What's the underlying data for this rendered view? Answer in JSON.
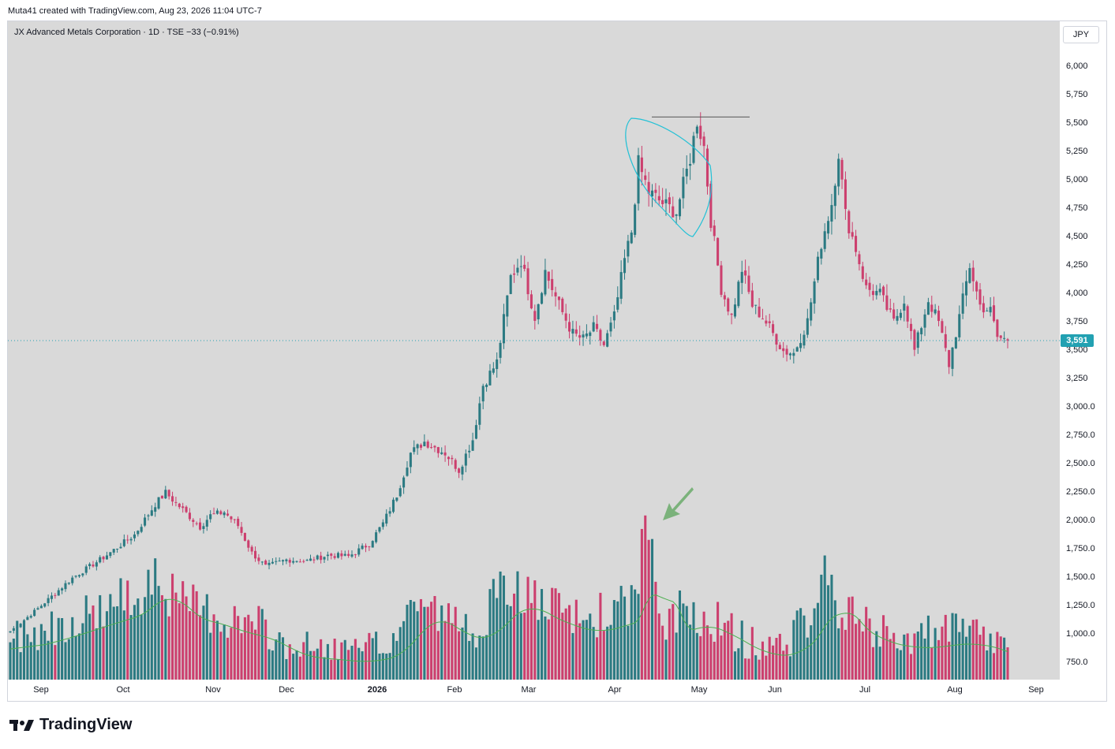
{
  "header": {
    "credit": "Muta41 created with TradingView.com, Aug 23, 2026 11:04 UTC-7"
  },
  "legend": {
    "symbol_line": "JX Advanced Metals Corporation · 1D · TSE  −33 (−0.91%)"
  },
  "currency": {
    "label": "JPY"
  },
  "last_price": {
    "label": "3,591",
    "value": 3591
  },
  "brand": {
    "name": "TradingView"
  },
  "icons": [
    "tradingview-logo-icon",
    "green-arrow-annotation-icon"
  ],
  "colors": {
    "up": "#2b7a82",
    "down": "#cc3f6e",
    "ma": "#4caf50",
    "annotation": "#22c1d6",
    "last_price": "#22a1b2"
  },
  "chart_data": {
    "type": "candlestick",
    "y_ticks": [
      "6,000",
      "5,750",
      "5,500",
      "5,250",
      "5,000",
      "4,750",
      "4,500",
      "4,250",
      "4,000",
      "3,750",
      "3,500",
      "3,250",
      "3,000.0",
      "2,750.0",
      "2,500.0",
      "2,250.0",
      "2,000.0",
      "1,750.0",
      "1,500.0",
      "1,250.0",
      "1,000.0",
      "750.0"
    ],
    "x_ticks": [
      "Sep",
      "Oct",
      "Nov",
      "Dec",
      "2026",
      "Feb",
      "Mar",
      "Apr",
      "May",
      "Jun",
      "Jul",
      "Aug",
      "Sep"
    ],
    "price_range": [
      750,
      6150
    ],
    "last_price": 3591,
    "resistance_level": 5560,
    "anchors": [
      [
        0,
        1030
      ],
      [
        8,
        1230
      ],
      [
        18,
        1500
      ],
      [
        27,
        1680
      ],
      [
        36,
        1880
      ],
      [
        42,
        2150
      ],
      [
        45,
        2250
      ],
      [
        50,
        2100
      ],
      [
        55,
        1950
      ],
      [
        58,
        2050
      ],
      [
        62,
        2080
      ],
      [
        66,
        1960
      ],
      [
        70,
        1720
      ],
      [
        74,
        1600
      ],
      [
        80,
        1660
      ],
      [
        86,
        1650
      ],
      [
        92,
        1700
      ],
      [
        98,
        1690
      ],
      [
        104,
        1800
      ],
      [
        108,
        1980
      ],
      [
        112,
        2230
      ],
      [
        116,
        2600
      ],
      [
        120,
        2700
      ],
      [
        126,
        2600
      ],
      [
        130,
        2450
      ],
      [
        134,
        2720
      ],
      [
        137,
        3200
      ],
      [
        141,
        3400
      ],
      [
        145,
        4150
      ],
      [
        148,
        4300
      ],
      [
        152,
        3800
      ],
      [
        155,
        4200
      ],
      [
        159,
        3900
      ],
      [
        163,
        3650
      ],
      [
        166,
        3600
      ],
      [
        169,
        3700
      ],
      [
        172,
        3550
      ],
      [
        175,
        3800
      ],
      [
        178,
        4300
      ],
      [
        180,
        4550
      ],
      [
        182,
        5150
      ],
      [
        185,
        4900
      ],
      [
        189,
        4800
      ],
      [
        193,
        4720
      ],
      [
        197,
        5200
      ],
      [
        199,
        5530
      ],
      [
        201,
        5300
      ],
      [
        203,
        4650
      ],
      [
        206,
        4050
      ],
      [
        209,
        3800
      ],
      [
        212,
        4220
      ],
      [
        215,
        3900
      ],
      [
        218,
        3800
      ],
      [
        221,
        3650
      ],
      [
        224,
        3500
      ],
      [
        227,
        3480
      ],
      [
        231,
        3760
      ],
      [
        235,
        4450
      ],
      [
        238,
        4800
      ],
      [
        240,
        5250
      ],
      [
        242,
        4700
      ],
      [
        245,
        4400
      ],
      [
        248,
        4050
      ],
      [
        252,
        4000
      ],
      [
        256,
        3750
      ],
      [
        259,
        3950
      ],
      [
        262,
        3500
      ],
      [
        266,
        3950
      ],
      [
        269,
        3750
      ],
      [
        272,
        3380
      ],
      [
        275,
        3800
      ],
      [
        278,
        4250
      ],
      [
        281,
        3900
      ],
      [
        284,
        3850
      ],
      [
        286,
        3620
      ],
      [
        289,
        3591
      ]
    ],
    "volume_series": {
      "name": "",
      "range": [
        750,
        6150
      ],
      "anchors": [
        [
          0,
          950
        ],
        [
          12,
          1050
        ],
        [
          24,
          1180
        ],
        [
          36,
          1300
        ],
        [
          42,
          1550
        ],
        [
          48,
          1250
        ],
        [
          56,
          1200
        ],
        [
          64,
          1100
        ],
        [
          72,
          1050
        ],
        [
          80,
          880
        ],
        [
          90,
          850
        ],
        [
          100,
          820
        ],
        [
          110,
          900
        ],
        [
          118,
          1300
        ],
        [
          124,
          1150
        ],
        [
          134,
          1000
        ],
        [
          140,
          1250
        ],
        [
          146,
          1400
        ],
        [
          150,
          1300
        ],
        [
          156,
          1200
        ],
        [
          166,
          1100
        ],
        [
          176,
          1200
        ],
        [
          181,
          1250
        ],
        [
          184,
          2050
        ],
        [
          188,
          1050
        ],
        [
          196,
          1200
        ],
        [
          204,
          1100
        ],
        [
          214,
          900
        ],
        [
          224,
          880
        ],
        [
          232,
          1150
        ],
        [
          236,
          1500
        ],
        [
          240,
          1200
        ],
        [
          250,
          1000
        ],
        [
          262,
          950
        ],
        [
          270,
          1000
        ],
        [
          276,
          1000
        ],
        [
          283,
          950
        ],
        [
          289,
          850
        ]
      ],
      "spike_value": 2050
    },
    "moving_average": {
      "name": "",
      "range": [
        750,
        6150
      ]
    }
  }
}
